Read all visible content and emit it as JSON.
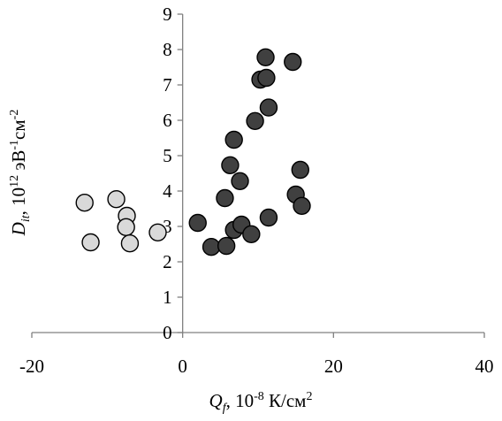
{
  "chart_data": {
    "type": "scatter",
    "title": "",
    "xlabel": {
      "symbol": "Q",
      "sub": "f",
      "unit_prefix": ", 10",
      "exp": "-8",
      "unit": " К/см",
      "unit_exp": "2"
    },
    "ylabel": {
      "symbol": "D",
      "sub": "it",
      "unit_prefix": ", 10",
      "exp": "12",
      "unit1": " эВ",
      "exp1": "-1",
      "unit2": "см",
      "exp2": "-2"
    },
    "xlim": [
      -20,
      40
    ],
    "ylim": [
      0,
      9
    ],
    "x_ticks": [
      -20,
      0,
      20,
      40
    ],
    "x_tick_labels": [
      "-20",
      "0",
      "20",
      "40"
    ],
    "y_ticks": [
      0,
      1,
      2,
      3,
      4,
      5,
      6,
      7,
      8,
      9
    ],
    "y_tick_labels": [
      "0",
      "1",
      "2",
      "3",
      "4",
      "5",
      "6",
      "7",
      "8",
      "9"
    ],
    "grid": false,
    "legend": "none",
    "series": [
      {
        "color": "#d9d9d9",
        "points": [
          {
            "x": -13.0,
            "y": 3.67
          },
          {
            "x": -12.2,
            "y": 2.55
          },
          {
            "x": -8.8,
            "y": 3.77
          },
          {
            "x": -7.4,
            "y": 3.3
          },
          {
            "x": -7.5,
            "y": 2.98
          },
          {
            "x": -7.0,
            "y": 2.52
          },
          {
            "x": -3.3,
            "y": 2.83
          }
        ]
      },
      {
        "color": "#404040",
        "points": [
          {
            "x": 2.0,
            "y": 3.1
          },
          {
            "x": 3.8,
            "y": 2.42
          },
          {
            "x": 5.8,
            "y": 2.45
          },
          {
            "x": 5.6,
            "y": 3.8
          },
          {
            "x": 6.3,
            "y": 4.73
          },
          {
            "x": 6.8,
            "y": 5.45
          },
          {
            "x": 6.8,
            "y": 2.9
          },
          {
            "x": 7.6,
            "y": 4.28
          },
          {
            "x": 7.8,
            "y": 3.05
          },
          {
            "x": 9.1,
            "y": 2.78
          },
          {
            "x": 9.6,
            "y": 5.98
          },
          {
            "x": 10.3,
            "y": 7.15
          },
          {
            "x": 11.0,
            "y": 7.78
          },
          {
            "x": 11.1,
            "y": 7.2
          },
          {
            "x": 11.4,
            "y": 6.36
          },
          {
            "x": 11.4,
            "y": 3.25
          },
          {
            "x": 14.6,
            "y": 7.65
          },
          {
            "x": 15.0,
            "y": 3.9
          },
          {
            "x": 15.6,
            "y": 4.6
          },
          {
            "x": 15.8,
            "y": 3.58
          }
        ]
      }
    ]
  }
}
